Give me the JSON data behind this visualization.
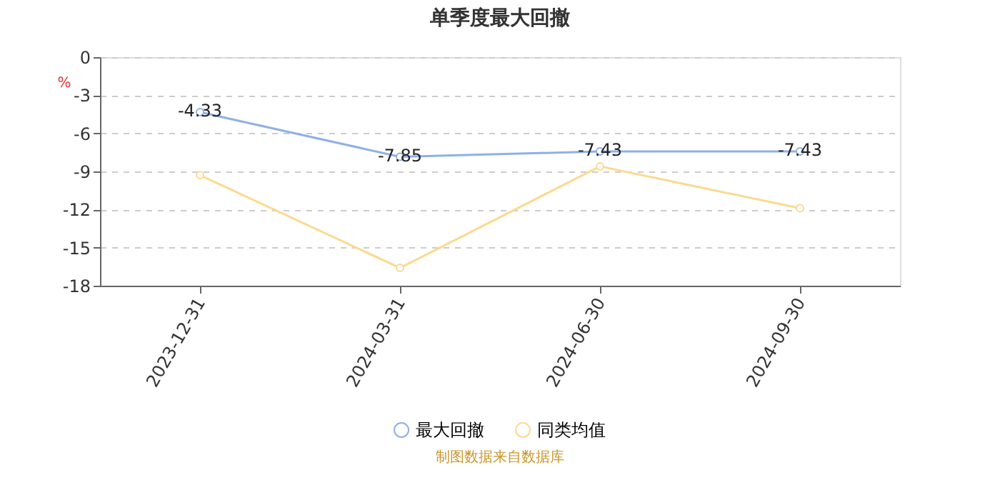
{
  "chart_data": {
    "type": "line",
    "title": "单季度最大回撤",
    "ylabel": "%",
    "categories": [
      "2023-12-31",
      "2024-03-31",
      "2024-06-30",
      "2024-09-30"
    ],
    "series": [
      {
        "name": "最大回撤",
        "color": "#8fb0e6",
        "values": [
          -4.33,
          -7.85,
          -7.43,
          -7.43
        ],
        "value_labels": [
          "-4.33",
          "-7.85",
          "-7.43",
          "-7.43"
        ]
      },
      {
        "name": "同类均值",
        "color": "#fcd98f",
        "values": [
          -9.3,
          -16.6,
          -8.6,
          -11.9
        ]
      }
    ],
    "ylim": [
      -18,
      0
    ],
    "yticks": [
      -18,
      -15,
      -12,
      -9,
      -6,
      -3,
      0
    ],
    "grid": "y",
    "legend": "bottom",
    "marker": "circle",
    "line_style": "solid",
    "annotations": [
      "制图数据来自数据库"
    ]
  }
}
